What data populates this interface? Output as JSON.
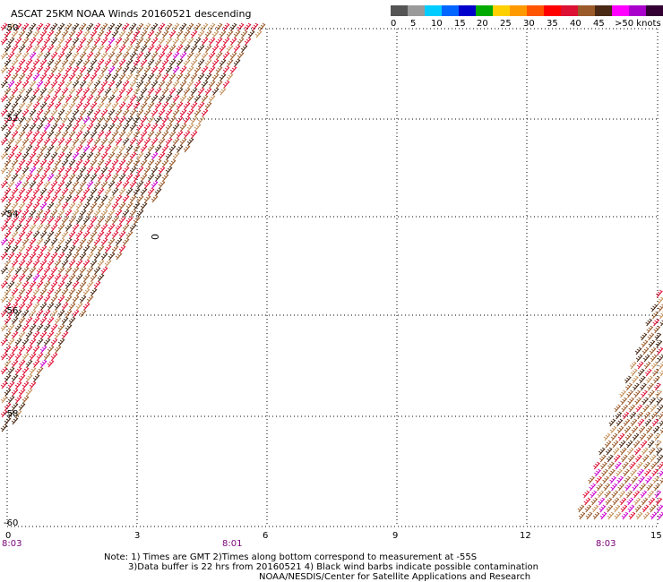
{
  "title": "ASCAT 25KM NOAA Winds 20160521 descending",
  "legend": {
    "colors": [
      "#555555",
      "#9a9a9a",
      "#00ccff",
      "#0066ff",
      "#0000cc",
      "#00aa00",
      "#ffd000",
      "#ff9900",
      "#ff5500",
      "#ff0000",
      "#dd1133",
      "#9a5a2a",
      "#4a2a15",
      "#ff00ff",
      "#aa00cc",
      "#330033"
    ],
    "labels": [
      "0",
      "5",
      "10",
      "15",
      "20",
      "25",
      "30",
      "35",
      "40",
      "45",
      ">50 knots"
    ]
  },
  "axes": {
    "x_ticks": [
      "0",
      "3",
      "6",
      "9",
      "12",
      "15"
    ],
    "y_ticks": [
      "-50",
      "-52",
      "-54",
      "-56",
      "-58",
      "-60"
    ]
  },
  "time_labels": [
    "8:03",
    "8:01",
    "8:03"
  ],
  "marker": "0",
  "notes": [
    "Note: 1) Times are GMT 2)Times along bottom correspond to measurement at -55S",
    "3)Data buffer is 22 hrs from 20160521 4) Black wind barbs indicate possible contamination",
    "NOAA/NESDIS/Center for Satellite Applications and Research"
  ],
  "barb_colors": {
    "high": "#dd1133",
    "mid": "#9a5a2a",
    "dark": "#4a2a15",
    "light": "#c4905a",
    "magenta": "#cc00cc"
  }
}
